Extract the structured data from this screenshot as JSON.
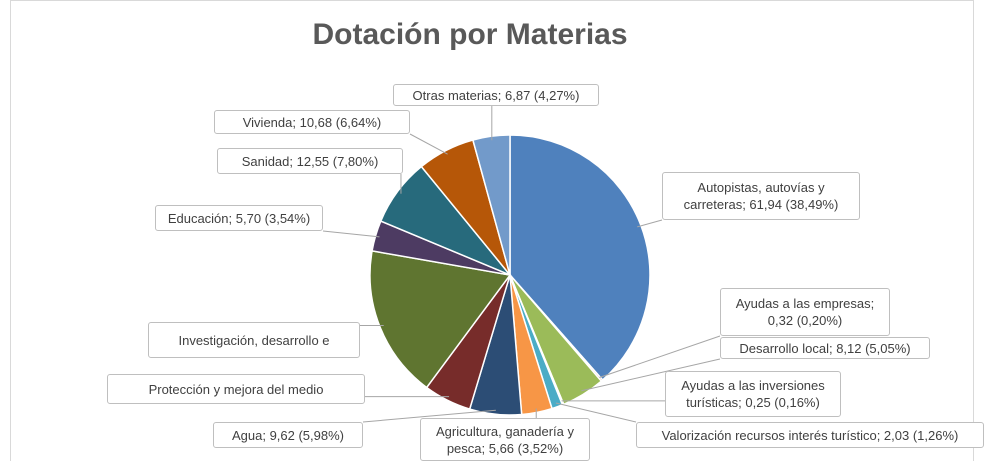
{
  "chart_data": {
    "type": "pie",
    "title": "Dotación por Materias",
    "labels": [
      "Autopistas, autovías y carreteras; 61,94 (38,49%)",
      "Ayudas a las empresas; 0,32 (0,20%)",
      "Desarrollo local; 8,12 (5,05%)",
      "Ayudas a las inversiones turísticas; 0,25 (0,16%)",
      "Valorización recursos interés turístico; 2,03 (1,26%)",
      "Agricultura, ganadería y pesca; 5,66 (3,52%)",
      "Agua; 9,62 (5,98%)",
      "Protección y mejora del medio",
      "Investigación, desarrollo e",
      "Educación; 5,70 (3,54%)",
      "Sanidad; 12,55 (7,80%)",
      "Vivienda; 10,68 (6,64%)",
      "Otras materias; 6,87 (4,27%)"
    ],
    "values": [
      61.94,
      0.32,
      8.12,
      0.25,
      2.03,
      5.66,
      9.62,
      8.85,
      28.33,
      5.7,
      12.55,
      10.68,
      6.87
    ],
    "colors": [
      "#4f81bd",
      "#c0504d",
      "#9bbb59",
      "#8064a2",
      "#4bacc6",
      "#f79646",
      "#2c4d75",
      "#772c2a",
      "#5f7530",
      "#4d3b62",
      "#276a7c",
      "#b65708",
      "#729aca"
    ]
  }
}
